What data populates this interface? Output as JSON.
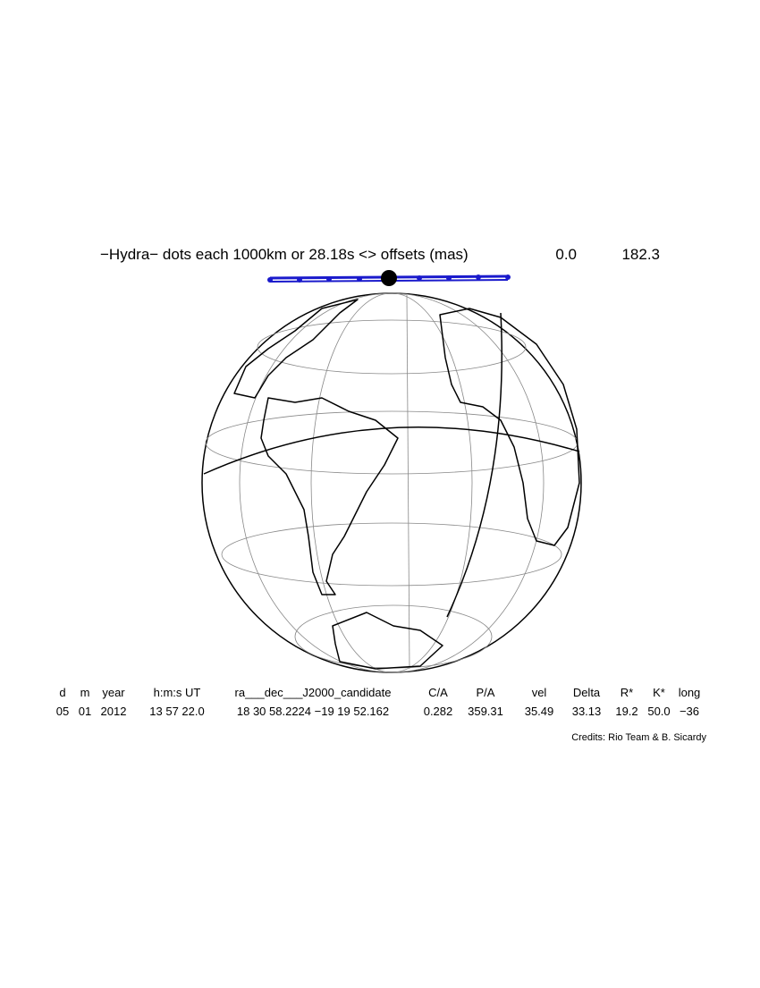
{
  "title": "−Hydra− dots each 1000km or 28.18s <> offsets (mas)",
  "offsets": [
    "0.0",
    "182.3"
  ],
  "table": {
    "headers": [
      "d",
      "m",
      "year",
      "h:m:s UT",
      "ra___dec___J2000_candidate",
      "C/A",
      "P/A",
      "vel",
      "Delta",
      "R*",
      "K*",
      "long"
    ],
    "values": [
      "05",
      "01",
      "2012",
      "13 57 22.0",
      "18 30 58.2224 −19 19 52.162",
      "0.282",
      "359.31",
      "35.49",
      "33.13",
      "19.2",
      "50.0",
      "−36"
    ]
  },
  "credits": "Credits: Rio Team & B. Sicardy"
}
